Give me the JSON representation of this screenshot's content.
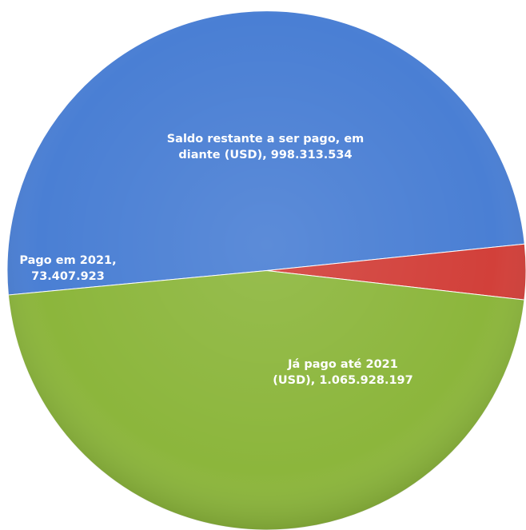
{
  "chart_data": {
    "type": "pie",
    "title": "",
    "slices": [
      {
        "label_lines": [
          "Já pago até 2021",
          "(USD), 1.065.928.197"
        ],
        "category": "Já pago até 2021 (USD)",
        "value": 1065928197,
        "color": "#4a7fd4"
      },
      {
        "label_lines": [
          "Pago em 2021,",
          "73.407.923"
        ],
        "category": "Pago em 2021",
        "value": 73407923,
        "color": "#d2403a"
      },
      {
        "label_lines": [
          "Saldo restante a ser pago, em",
          "diante (USD), 998.313.534"
        ],
        "category": "Saldo restante a ser pago, em diante (USD)",
        "value": 998313534,
        "color": "#8cb63c"
      }
    ],
    "legend": "none",
    "data_labels": "inside"
  }
}
